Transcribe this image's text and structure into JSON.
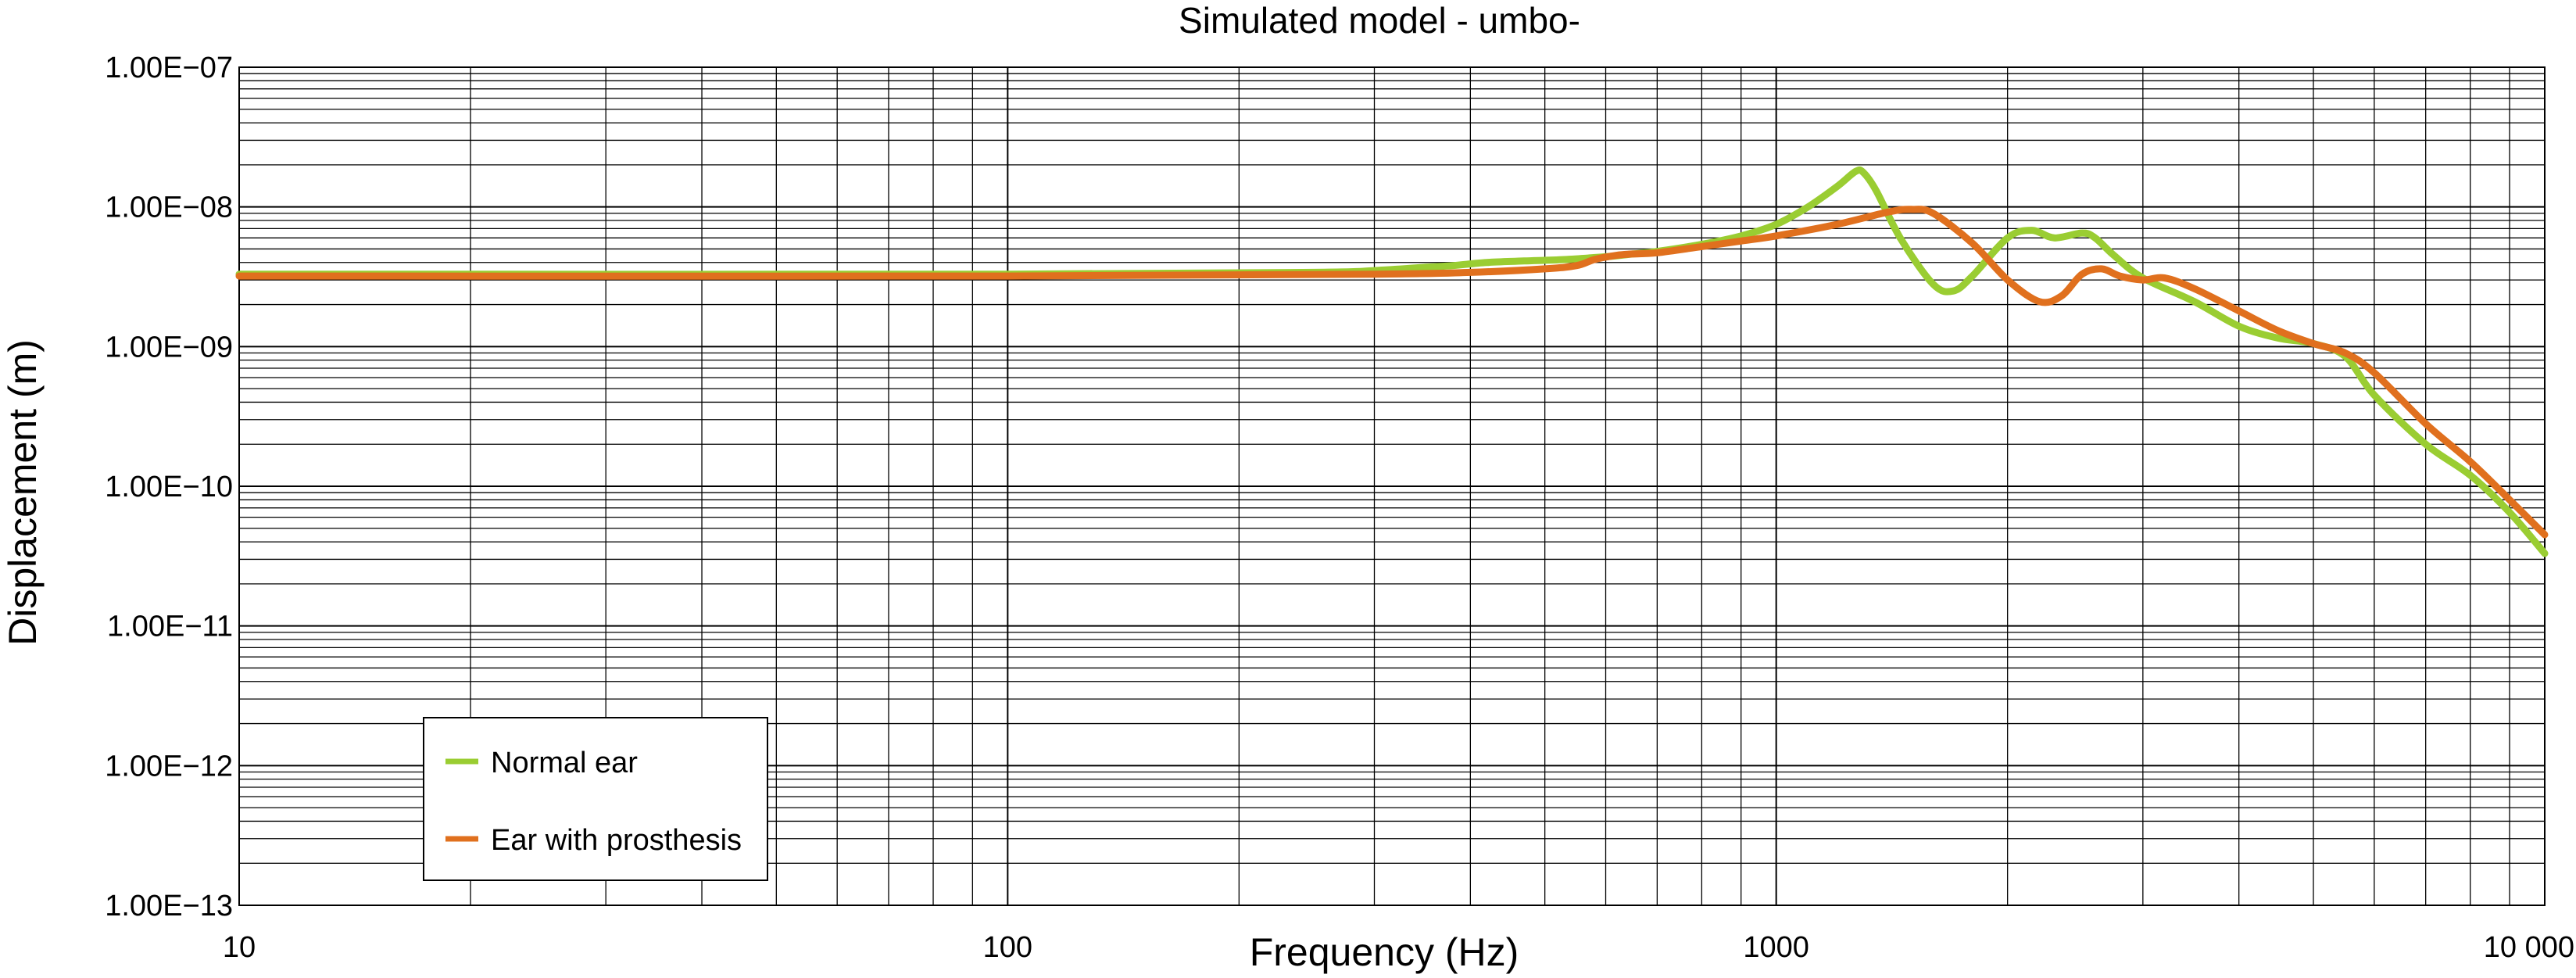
{
  "chart_data": {
    "type": "line",
    "title": "Simulated model - umbo-",
    "xlabel": "Frequency (Hz)",
    "ylabel": "Displacement (m)",
    "x_scale": "log",
    "y_scale": "log",
    "xlim": [
      10,
      10000
    ],
    "ylim": [
      1e-13,
      1e-07
    ],
    "x_tick_labels": [
      "10",
      "100",
      "1000",
      "10 000"
    ],
    "y_tick_labels": [
      "1.00E−07",
      "1.00E−08",
      "1.00E−09",
      "1.00E−10",
      "1.00E−11",
      "1.00E−12",
      "1.00E−13"
    ],
    "grid": true,
    "legend_position": "bottom-left",
    "series": [
      {
        "name": "Normal ear",
        "color": "#9ACD32",
        "x": [
          10,
          100,
          250,
          300,
          350,
          380,
          420,
          470,
          530,
          600,
          650,
          700,
          800,
          900,
          1000,
          1100,
          1200,
          1270,
          1300,
          1350,
          1450,
          1600,
          1700,
          1800,
          2000,
          2150,
          2300,
          2500,
          2600,
          2750,
          3000,
          3500,
          4000,
          4500,
          5000,
          5500,
          6000,
          7000,
          8000,
          9000,
          10000
        ],
        "y": [
          3.3e-09,
          3.3e-09,
          3.4e-09,
          3.5e-09,
          3.7e-09,
          3.8e-09,
          4e-09,
          4.1e-09,
          4.2e-09,
          4.4e-09,
          4.6e-09,
          4.8e-09,
          5.4e-09,
          6.2e-09,
          7.5e-09,
          1e-08,
          1.4e-08,
          1.8e-08,
          1.75e-08,
          1.3e-08,
          6e-09,
          2.8e-09,
          2.5e-09,
          3.2e-09,
          6e-09,
          6.8e-09,
          6e-09,
          6.5e-09,
          6e-09,
          4.5e-09,
          3.1e-09,
          2.1e-09,
          1.4e-09,
          1.15e-09,
          1.05e-09,
          8.5e-10,
          4.5e-10,
          2e-10,
          1.2e-10,
          6.5e-11,
          3.3e-11
        ]
      },
      {
        "name": "Ear with prosthesis",
        "color": "#E0701E",
        "x": [
          10,
          100,
          300,
          400,
          500,
          550,
          580,
          620,
          650,
          700,
          800,
          900,
          1000,
          1200,
          1400,
          1500,
          1600,
          1800,
          2000,
          2200,
          2350,
          2500,
          2650,
          2800,
          3000,
          3200,
          3500,
          4000,
          4500,
          5000,
          5500,
          6000,
          7000,
          8000,
          9000,
          10000
        ],
        "y": [
          3.2e-09,
          3.2e-09,
          3.3e-09,
          3.4e-09,
          3.6e-09,
          3.8e-09,
          4.2e-09,
          4.5e-09,
          4.6e-09,
          4.7e-09,
          5.2e-09,
          5.7e-09,
          6.2e-09,
          7.5e-09,
          9.2e-09,
          9.6e-09,
          9e-09,
          5.5e-09,
          3e-09,
          2.1e-09,
          2.3e-09,
          3.3e-09,
          3.6e-09,
          3.2e-09,
          3e-09,
          3.1e-09,
          2.6e-09,
          1.8e-09,
          1.3e-09,
          1.05e-09,
          9e-10,
          6.5e-10,
          2.8e-10,
          1.5e-10,
          8e-11,
          4.5e-11
        ]
      }
    ]
  }
}
